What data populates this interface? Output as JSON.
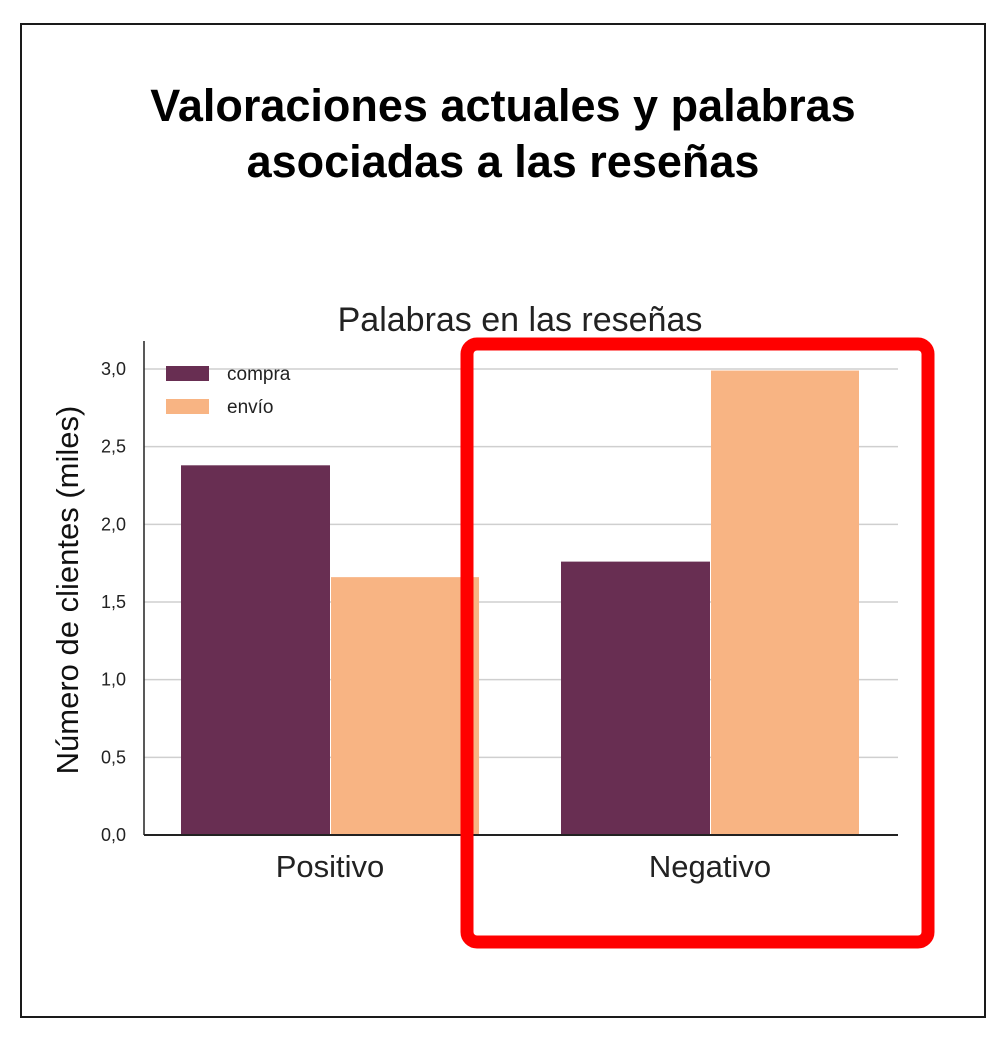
{
  "page": {
    "title_line1": "Valoraciones actuales y palabras",
    "title_line2": "asociadas a las reseñas"
  },
  "chart_data": {
    "type": "bar",
    "title": "Palabras en las reseñas",
    "xlabel": "",
    "ylabel": "Número de clientes (miles)",
    "ylim": [
      0,
      3.0
    ],
    "yticks": [
      0,
      0.5,
      1.0,
      1.5,
      2.0,
      2.5,
      3.0
    ],
    "ytick_labels": [
      "0,0",
      "0,5",
      "1,0",
      "1,5",
      "2,0",
      "2,5",
      "3,0"
    ],
    "categories": [
      "Positivo",
      "Negativo"
    ],
    "series": [
      {
        "name": "compra",
        "values": [
          2.38,
          1.76
        ],
        "color": "#682e52"
      },
      {
        "name": "envío",
        "values": [
          1.66,
          2.99
        ],
        "color": "#f8b483"
      }
    ],
    "grid": true,
    "legend_position": "top-left",
    "highlight": {
      "category": "Negativo",
      "color": "#ff0000"
    }
  }
}
